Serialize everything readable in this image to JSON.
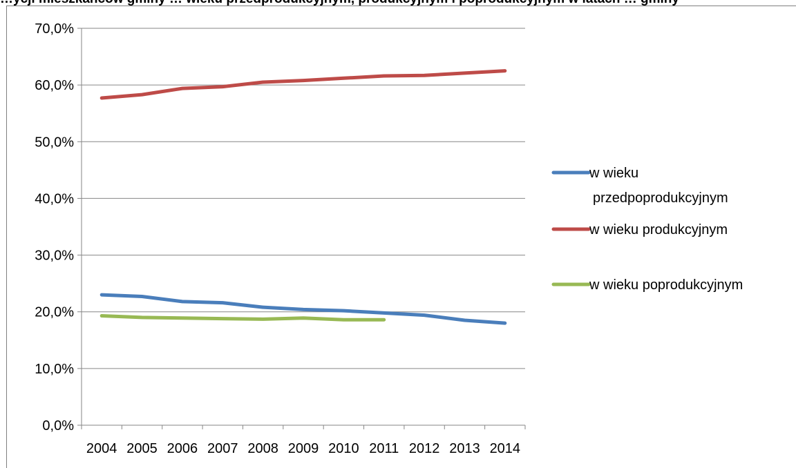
{
  "title": "…ycji mieszkańców gminy … wieku przedprodukcyjnym, produkcyjnym i poprodukcyjnym w latach … gminy",
  "chart_data": {
    "type": "line",
    "title": "",
    "xlabel": "",
    "ylabel": "",
    "categories": [
      "2004",
      "2005",
      "2006",
      "2007",
      "2008",
      "2009",
      "2010",
      "2011",
      "2012",
      "2013",
      "2014"
    ],
    "ylim": [
      0,
      70
    ],
    "yticks": [
      0,
      10,
      20,
      30,
      40,
      50,
      60,
      70
    ],
    "ytick_labels": [
      "0,0%",
      "10,0%",
      "20,0%",
      "30,0%",
      "40,0%",
      "50,0%",
      "60,0%",
      "70,0%"
    ],
    "grid": true,
    "legend_position": "right",
    "series": [
      {
        "name_lines": [
          "w wieku",
          "przedpoprodukcyjnym"
        ],
        "color": "#4a7ebb",
        "values": [
          23.0,
          22.7,
          21.8,
          21.6,
          20.8,
          20.4,
          20.2,
          19.8,
          19.4,
          18.5,
          18.0
        ]
      },
      {
        "name_lines": [
          "w wieku produkcyjnym"
        ],
        "color": "#be4b48",
        "values": [
          57.7,
          58.3,
          59.4,
          59.7,
          60.5,
          60.8,
          61.2,
          61.6,
          61.7,
          62.1,
          62.5
        ]
      },
      {
        "name_lines": [
          "w wieku poprodukcyjnym"
        ],
        "color": "#98b954",
        "values": [
          19.3,
          19.0,
          18.9,
          18.8,
          18.7,
          18.9,
          18.6,
          18.6,
          null,
          null,
          null
        ]
      }
    ]
  }
}
